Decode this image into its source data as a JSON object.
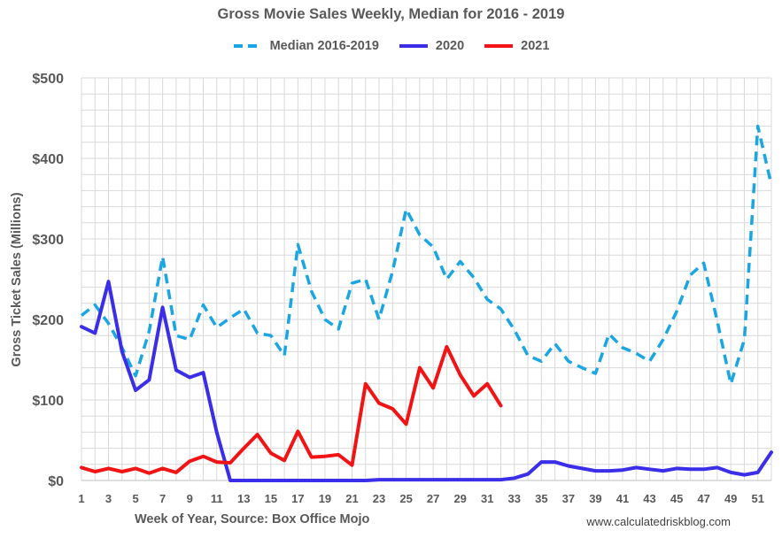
{
  "chart_data": {
    "type": "line",
    "title": "Gross Movie Sales Weekly, Median for 2016 - 2019",
    "xlabel": "Week of Year, Source: Box Office Mojo",
    "ylabel": "Gross Ticket Sales (Millions)",
    "source_note": "www.calculatedriskblog.com",
    "xlim": [
      1,
      52
    ],
    "ylim": [
      0,
      500
    ],
    "y_ticks": [
      0,
      100,
      200,
      300,
      400,
      500
    ],
    "y_tick_labels": [
      "$0",
      "$100",
      "$200",
      "$300",
      "$400",
      "$500"
    ],
    "x_tick_labels": [
      "1",
      "3",
      "5",
      "7",
      "9",
      "11",
      "13",
      "15",
      "17",
      "19",
      "21",
      "23",
      "25",
      "27",
      "29",
      "31",
      "33",
      "35",
      "37",
      "39",
      "41",
      "43",
      "45",
      "47",
      "49",
      "51"
    ],
    "grid": true,
    "legend_position": "top-center",
    "series": [
      {
        "name": "Median 2016-2019",
        "color": "#1AA6E3",
        "style": "dashed",
        "x": [
          1,
          2,
          3,
          4,
          5,
          6,
          7,
          8,
          9,
          10,
          11,
          12,
          13,
          14,
          15,
          16,
          17,
          18,
          19,
          20,
          21,
          22,
          23,
          24,
          25,
          26,
          27,
          28,
          29,
          30,
          31,
          32,
          33,
          34,
          35,
          36,
          37,
          38,
          39,
          40,
          41,
          42,
          43,
          44,
          45,
          46,
          47,
          48,
          49,
          50,
          51,
          52
        ],
        "values": [
          205,
          218,
          195,
          165,
          130,
          185,
          278,
          180,
          175,
          218,
          190,
          202,
          213,
          183,
          180,
          155,
          293,
          235,
          200,
          188,
          245,
          250,
          200,
          260,
          337,
          305,
          290,
          250,
          272,
          252,
          225,
          213,
          187,
          155,
          148,
          170,
          148,
          140,
          133,
          182,
          165,
          158,
          148,
          175,
          210,
          255,
          270,
          198,
          120,
          175,
          440,
          367
        ]
      },
      {
        "name": "2020",
        "color": "#3B2EE8",
        "style": "solid",
        "x": [
          1,
          2,
          3,
          4,
          5,
          6,
          7,
          8,
          9,
          10,
          11,
          12,
          13,
          14,
          15,
          16,
          17,
          18,
          19,
          20,
          21,
          22,
          23,
          24,
          25,
          26,
          27,
          28,
          29,
          30,
          31,
          32,
          33,
          34,
          35,
          36,
          37,
          38,
          39,
          40,
          41,
          42,
          43,
          44,
          45,
          46,
          47,
          48,
          49,
          50,
          51,
          52
        ],
        "values": [
          191,
          183,
          247,
          160,
          112,
          125,
          215,
          137,
          128,
          134,
          60,
          0,
          0,
          0,
          0,
          0,
          0,
          0,
          0,
          0,
          0,
          0,
          1,
          1,
          1,
          1,
          1,
          1,
          1,
          1,
          1,
          1,
          3,
          8,
          23,
          23,
          18,
          15,
          12,
          12,
          13,
          16,
          14,
          12,
          15,
          14,
          14,
          16,
          10,
          7,
          10,
          35
        ]
      },
      {
        "name": "2021",
        "color": "#F21414",
        "style": "solid",
        "x": [
          1,
          2,
          3,
          4,
          5,
          6,
          7,
          8,
          9,
          10,
          11,
          12,
          13,
          14,
          15,
          16,
          17,
          18,
          19,
          20,
          21,
          22,
          23,
          24,
          25,
          26,
          27,
          28,
          29,
          30,
          31,
          32
        ],
        "values": [
          16,
          11,
          15,
          11,
          15,
          9,
          15,
          10,
          24,
          30,
          23,
          22,
          40,
          57,
          34,
          25,
          61,
          29,
          30,
          32,
          19,
          120,
          96,
          89,
          70,
          140,
          115,
          166,
          131,
          105,
          120,
          93
        ]
      }
    ]
  }
}
